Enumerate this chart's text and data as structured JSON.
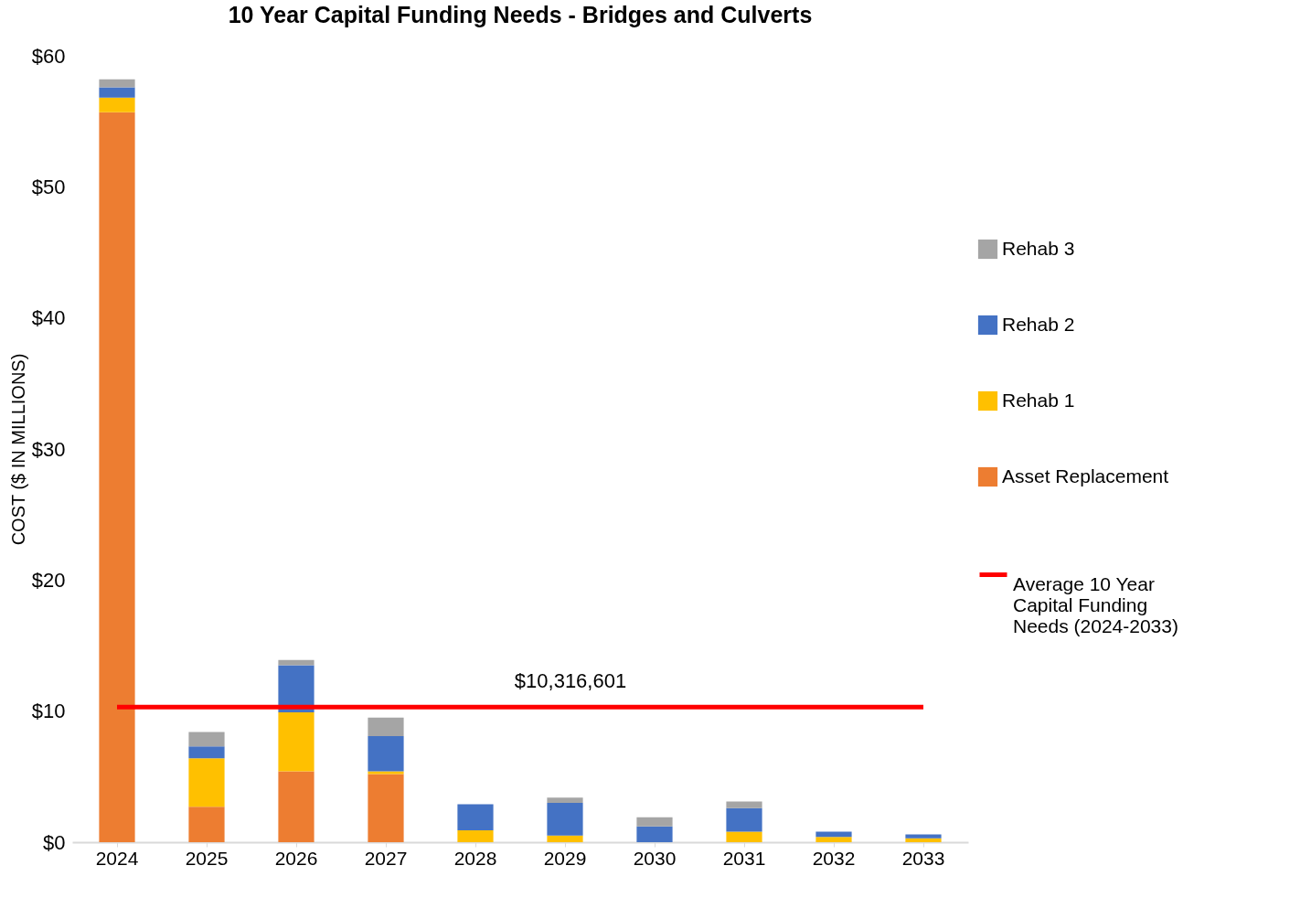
{
  "chart_data": {
    "type": "bar",
    "title": "10 Year Capital Funding Needs - Bridges and Culverts",
    "ylabel": "COST ($ IN MILLIONS)",
    "categories": [
      "2024",
      "2025",
      "2026",
      "2027",
      "2028",
      "2029",
      "2030",
      "2031",
      "2032",
      "2033"
    ],
    "stacked": true,
    "series": [
      {
        "name": "Asset Replacement",
        "color": "#ed7d31",
        "values": [
          55.7,
          2.7,
          5.4,
          5.2,
          0,
          0,
          0,
          0,
          0,
          0
        ]
      },
      {
        "name": "Rehab 1",
        "color": "#ffc000",
        "values": [
          1.1,
          3.7,
          4.5,
          0.2,
          0.9,
          0.5,
          0,
          0.8,
          0.4,
          0.3
        ]
      },
      {
        "name": "Rehab 2",
        "color": "#4472c4",
        "values": [
          0.8,
          0.9,
          3.6,
          2.7,
          2.0,
          2.5,
          1.2,
          1.8,
          0.4,
          0.3
        ]
      },
      {
        "name": "Rehab 3",
        "color": "#a5a5a5",
        "values": [
          0.6,
          1.1,
          0.4,
          1.4,
          0,
          0.4,
          0.7,
          0.5,
          0,
          0
        ]
      }
    ],
    "ylim": [
      0,
      60
    ],
    "yticks": [
      {
        "value": 0,
        "label": "$0"
      },
      {
        "value": 10,
        "label": "$10"
      },
      {
        "value": 20,
        "label": "$20"
      },
      {
        "value": 30,
        "label": "$30"
      },
      {
        "value": 40,
        "label": "$40"
      },
      {
        "value": 50,
        "label": "$50"
      },
      {
        "value": 60,
        "label": "$60"
      }
    ],
    "ref_lines": [
      {
        "axis": "y",
        "value": 10.316601,
        "label": "Average 10 Year Capital Funding Needs (2024-2033)",
        "color": "#ff0000"
      }
    ],
    "annotations": [
      {
        "text": "$10,316,601",
        "x": "2029",
        "y": 10.316601
      }
    ],
    "legend": "right",
    "grid": false
  }
}
